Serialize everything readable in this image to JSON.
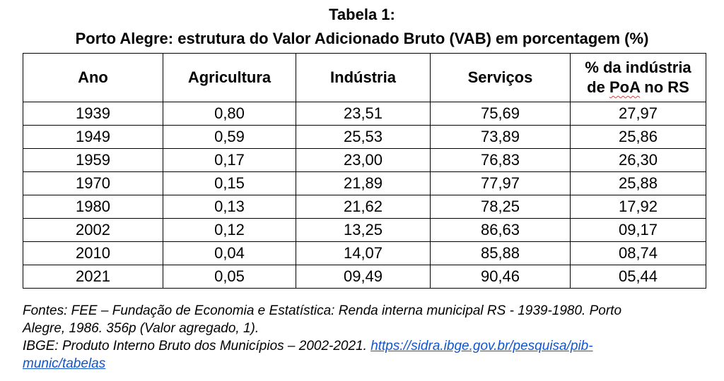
{
  "title": {
    "line1": "Tabela 1:",
    "line2": "Porto Alegre: estrutura do Valor Adicionado Bruto (VAB) em porcentagem (%)"
  },
  "table": {
    "headers": {
      "ano": "Ano",
      "agricultura": "Agricultura",
      "industria": "Indústria",
      "servicos": "Serviços",
      "pct_line1": "% da indústria",
      "pct_line2_a": "de ",
      "pct_line2_b": "PoA",
      "pct_line2_c": " no RS"
    },
    "rows": [
      {
        "ano": "1939",
        "agricultura": "0,80",
        "industria": "23,51",
        "servicos": "75,69",
        "pct": "27,97"
      },
      {
        "ano": "1949",
        "agricultura": "0,59",
        "industria": "25,53",
        "servicos": "73,89",
        "pct": "25,86"
      },
      {
        "ano": "1959",
        "agricultura": "0,17",
        "industria": "23,00",
        "servicos": "76,83",
        "pct": "26,30"
      },
      {
        "ano": "1970",
        "agricultura": "0,15",
        "industria": "21,89",
        "servicos": "77,97",
        "pct": "25,88"
      },
      {
        "ano": "1980",
        "agricultura": "0,13",
        "industria": "21,62",
        "servicos": "78,25",
        "pct": "17,92"
      },
      {
        "ano": "2002",
        "agricultura": "0,12",
        "industria": "13,25",
        "servicos": "86,63",
        "pct": "09,17"
      },
      {
        "ano": "2010",
        "agricultura": "0,04",
        "industria": "14,07",
        "servicos": "85,88",
        "pct": "08,74"
      },
      {
        "ano": "2021",
        "agricultura": "0,05",
        "industria": "09,49",
        "servicos": "90,46",
        "pct": "05,44"
      }
    ]
  },
  "sources": {
    "line1": "Fontes: FEE – Fundação de Economia e Estatística: Renda interna municipal RS - 1939-1980. Porto",
    "line2": "Alegre, 1986. 356p (Valor agregado, 1).",
    "line3_text": "IBGE: Produto Interno Bruto dos Municípios – 2002-2021. ",
    "line3_link": "https://sidra.ibge.gov.br/pesquisa/pib-",
    "line4_link": "munic/tabelas"
  },
  "colors": {
    "link": "#1155cc",
    "spellcheck_underline": "#d04040"
  }
}
